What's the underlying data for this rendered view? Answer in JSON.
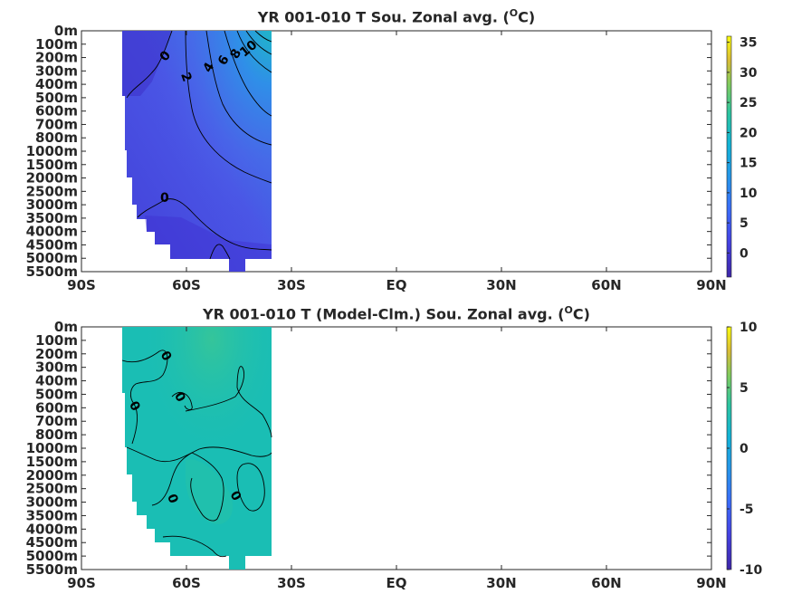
{
  "chart_data": [
    {
      "type": "heatmap",
      "title_main": "YR 001-010 T Sou. Zonal avg. (",
      "title_sup": "O",
      "title_end": "C)",
      "x_tick_labels": [
        "90S",
        "60S",
        "30S",
        "EQ",
        "30N",
        "60N",
        "90N"
      ],
      "x_ticks": [
        -90,
        -60,
        -30,
        0,
        30,
        60,
        90
      ],
      "y_tick_labels": [
        "0m",
        "100m",
        "200m",
        "300m",
        "400m",
        "500m",
        "600m",
        "700m",
        "800m",
        "1000m",
        "1500m",
        "2000m",
        "2500m",
        "3000m",
        "3500m",
        "4000m",
        "4500m",
        "5000m",
        "5500m"
      ],
      "colorbar_ticks": [
        35,
        30,
        25,
        20,
        15,
        10,
        5,
        0
      ],
      "colorbar_range": [
        -4,
        36
      ],
      "contour_labels": [
        "0",
        "2",
        "4",
        "6",
        "8",
        "10",
        "0"
      ],
      "colors": {
        "low": "#3e26a8",
        "fill": "#4a4ee0",
        "warm": "#2f8fe8"
      }
    },
    {
      "type": "heatmap",
      "title_main": "YR 001-010 T (Model-Clm.) Sou. Zonal avg. (",
      "title_sup": "O",
      "title_end": "C)",
      "x_tick_labels": [
        "90S",
        "60S",
        "30S",
        "EQ",
        "30N",
        "60N",
        "90N"
      ],
      "x_ticks": [
        -90,
        -60,
        -30,
        0,
        30,
        60,
        90
      ],
      "y_tick_labels": [
        "0m",
        "100m",
        "200m",
        "300m",
        "400m",
        "500m",
        "600m",
        "700m",
        "800m",
        "1000m",
        "1500m",
        "2000m",
        "2500m",
        "3000m",
        "3500m",
        "4000m",
        "4500m",
        "5000m",
        "5500m"
      ],
      "colorbar_ticks": [
        10,
        5,
        0,
        -5,
        -10
      ],
      "colorbar_range": [
        -10,
        10
      ],
      "contour_labels": [
        "0",
        "0",
        "0",
        "0",
        "0"
      ],
      "colors": {
        "fill": "#19bdb6",
        "warm": "#2cc4a0"
      }
    }
  ]
}
